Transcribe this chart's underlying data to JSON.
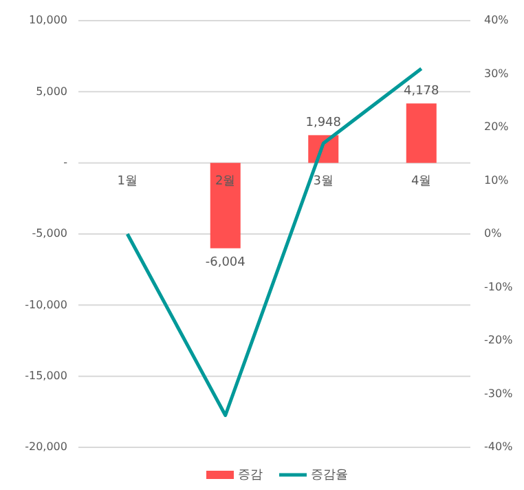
{
  "chart_data": {
    "type": "bar",
    "categories": [
      "1월",
      "2월",
      "3월",
      "4월"
    ],
    "series": [
      {
        "name": "증감",
        "color": "#ff5050",
        "values": [
          null,
          -6004,
          1948,
          4178
        ],
        "value_labels": [
          null,
          "-6,004",
          "1,948",
          "4,178"
        ]
      },
      {
        "name": "증감율",
        "type": "line",
        "axis": "y2",
        "color": "#009999",
        "values": [
          0,
          -34,
          17,
          31
        ]
      }
    ],
    "ylim": [
      -20000,
      10000
    ],
    "yticks": [
      {
        "value": -20000,
        "label": "-20,000"
      },
      {
        "value": -15000,
        "label": "-15,000"
      },
      {
        "value": -10000,
        "label": "-10,000"
      },
      {
        "value": -5000,
        "label": "-5,000"
      },
      {
        "value": 0,
        "label": "-"
      },
      {
        "value": 5000,
        "label": "5,000"
      },
      {
        "value": 10000,
        "label": "10,000"
      }
    ],
    "y2lim": [
      -40,
      40
    ],
    "y2ticks": [
      {
        "value": -40,
        "label": "-40%"
      },
      {
        "value": -30,
        "label": "-30%"
      },
      {
        "value": -20,
        "label": "-20%"
      },
      {
        "value": -10,
        "label": "-10%"
      },
      {
        "value": 0,
        "label": "0%"
      },
      {
        "value": 10,
        "label": "10%"
      },
      {
        "value": 20,
        "label": "20%"
      },
      {
        "value": 30,
        "label": "30%"
      },
      {
        "value": 40,
        "label": "40%"
      }
    ],
    "grid": "y",
    "legend": "bottom",
    "marker": "none",
    "line_style": "solid"
  }
}
